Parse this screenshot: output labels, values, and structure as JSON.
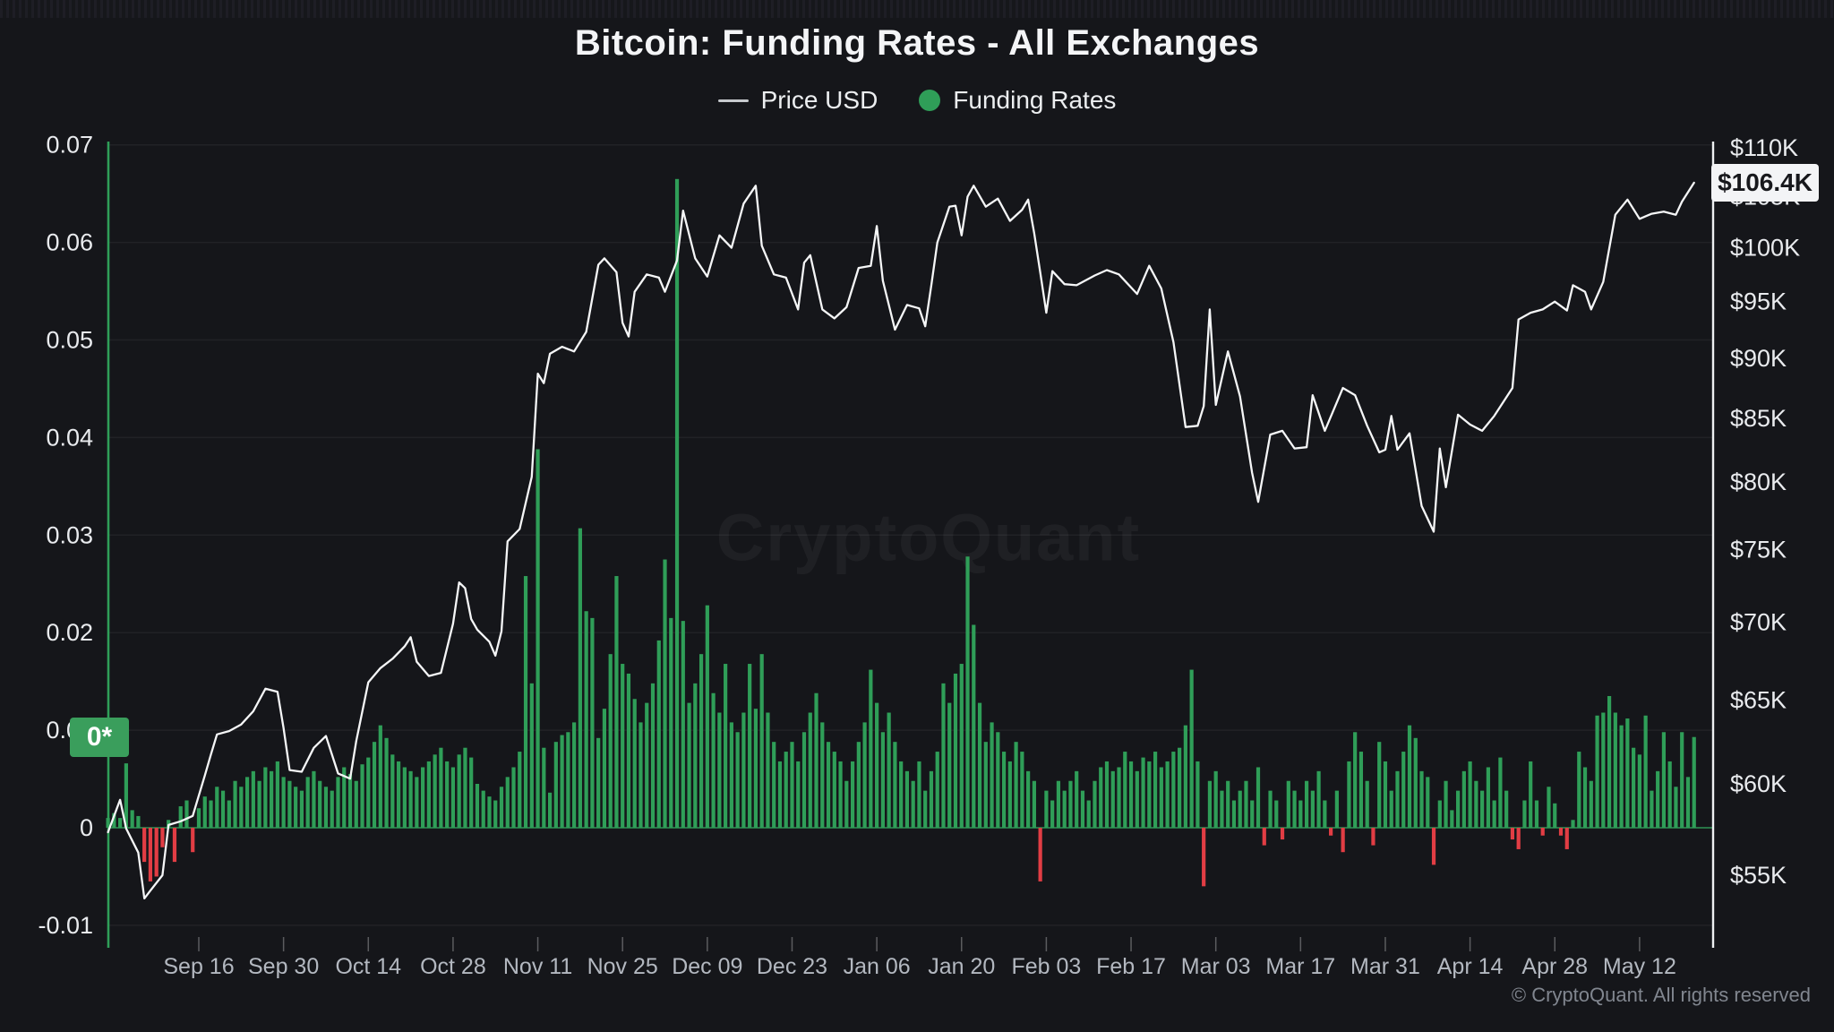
{
  "header": {
    "title": "Bitcoin: Funding Rates - All Exchanges"
  },
  "legend": {
    "items": [
      {
        "label": "Price USD",
        "marker": "line",
        "color": "#c6c9cd"
      },
      {
        "label": "Funding Rates",
        "marker": "dot",
        "color": "#2f9e58"
      }
    ]
  },
  "watermark": {
    "text": "CryptoQuant"
  },
  "footer": {
    "text": "© CryptoQuant. All rights reserved"
  },
  "colors": {
    "background": "#15161a",
    "grid": "rgba(255,255,255,0.055)",
    "funding_positive": "#2f9e58",
    "funding_negative": "#e23d44",
    "price_line": "#f5f6f7",
    "left_axis_line": "#2f9e58",
    "right_axis_line": "#eef0f2",
    "date_label": "#b3b8c0",
    "value_label": "#e9ebee",
    "tick_mark": "rgba(255,255,255,0.3)",
    "badge_funding_bg": "#3a9e5c",
    "badge_price_bg": "#f3f4f6"
  },
  "axes": {
    "left": {
      "title": "Funding Rates",
      "tick_labels": [
        "0.07",
        "0.06",
        "0.05",
        "0.04",
        "0.03",
        "0.02",
        "0.01",
        "0",
        "-0.01"
      ],
      "tick_values": [
        0.07,
        0.06,
        0.05,
        0.04,
        0.03,
        0.02,
        0.01,
        0,
        -0.01
      ],
      "badge": {
        "label": "0*",
        "value": 0.0093
      }
    },
    "right": {
      "title": "Price USD",
      "scale": "log",
      "tick_labels": [
        "$110K",
        "$105K",
        "$100K",
        "$95K",
        "$90K",
        "$85K",
        "$80K",
        "$75K",
        "$70K",
        "$65K",
        "$60K",
        "$55K"
      ],
      "tick_values": [
        110,
        105,
        100,
        95,
        90,
        85,
        80,
        75,
        70,
        65,
        60,
        55
      ],
      "badge": {
        "label": "$106.4K",
        "value": 106.4
      }
    },
    "x": {
      "start_date": "Sep 1, 2024",
      "tick_labels": [
        "Sep 16",
        "Sep 30",
        "Oct 14",
        "Oct 28",
        "Nov 11",
        "Nov 25",
        "Dec 09",
        "Dec 23",
        "Jan 06",
        "Jan 20",
        "Feb 03",
        "Feb 17",
        "Mar 03",
        "Mar 17",
        "Mar 31",
        "Apr 14",
        "Apr 28",
        "May 12"
      ],
      "tick_days": [
        15,
        29,
        43,
        57,
        71,
        85,
        99,
        113,
        127,
        141,
        155,
        169,
        183,
        197,
        211,
        225,
        239,
        253
      ]
    }
  },
  "chart_data": {
    "type": "composite",
    "title": "Bitcoin: Funding Rates - All Exchanges",
    "x_unit": "day index from Sep 1, 2024 (daily data, ends ~May 21, 2025)",
    "grid": "horizontal",
    "legend_position": "top-center",
    "y_left_range": [
      -0.013,
      0.07
    ],
    "y_right_range_thousands_usd": [
      52,
      112
    ],
    "series": [
      {
        "name": "Price USD",
        "type": "line",
        "axis": "right",
        "unit": "thousand USD",
        "points": [
          [
            0,
            57.3
          ],
          [
            2,
            59.1
          ],
          [
            3,
            57.5
          ],
          [
            5,
            56.2
          ],
          [
            6,
            53.8
          ],
          [
            7,
            54.2
          ],
          [
            9,
            55.0
          ],
          [
            10,
            57.7
          ],
          [
            12,
            57.9
          ],
          [
            14,
            58.2
          ],
          [
            16,
            60.5
          ],
          [
            17,
            61.7
          ],
          [
            18,
            62.9
          ],
          [
            20,
            63.1
          ],
          [
            22,
            63.5
          ],
          [
            24,
            64.3
          ],
          [
            26,
            65.7
          ],
          [
            28,
            65.5
          ],
          [
            29,
            63.3
          ],
          [
            30,
            60.8
          ],
          [
            32,
            60.7
          ],
          [
            34,
            62.1
          ],
          [
            36,
            62.8
          ],
          [
            38,
            60.6
          ],
          [
            40,
            60.3
          ],
          [
            41,
            62.5
          ],
          [
            43,
            66.1
          ],
          [
            45,
            67.0
          ],
          [
            47,
            67.6
          ],
          [
            49,
            68.4
          ],
          [
            50,
            69.0
          ],
          [
            51,
            67.4
          ],
          [
            53,
            66.5
          ],
          [
            55,
            66.7
          ],
          [
            57,
            69.9
          ],
          [
            58,
            72.7
          ],
          [
            59,
            72.3
          ],
          [
            60,
            70.2
          ],
          [
            61,
            69.5
          ],
          [
            63,
            68.7
          ],
          [
            64,
            67.8
          ],
          [
            65,
            69.4
          ],
          [
            66,
            75.6
          ],
          [
            68,
            76.5
          ],
          [
            70,
            80.4
          ],
          [
            71,
            88.7
          ],
          [
            72,
            87.9
          ],
          [
            73,
            90.4
          ],
          [
            75,
            91.0
          ],
          [
            77,
            90.6
          ],
          [
            79,
            92.3
          ],
          [
            81,
            98.4
          ],
          [
            82,
            99.0
          ],
          [
            84,
            97.7
          ],
          [
            85,
            93.1
          ],
          [
            86,
            91.9
          ],
          [
            87,
            95.9
          ],
          [
            89,
            97.5
          ],
          [
            91,
            97.2
          ],
          [
            92,
            95.9
          ],
          [
            94,
            98.8
          ],
          [
            95,
            103.6
          ],
          [
            97,
            99.0
          ],
          [
            99,
            97.3
          ],
          [
            101,
            101.2
          ],
          [
            103,
            100.0
          ],
          [
            105,
            104.3
          ],
          [
            107,
            106.1
          ],
          [
            108,
            100.2
          ],
          [
            110,
            97.5
          ],
          [
            112,
            97.2
          ],
          [
            114,
            94.3
          ],
          [
            115,
            98.6
          ],
          [
            116,
            99.3
          ],
          [
            118,
            94.3
          ],
          [
            120,
            93.5
          ],
          [
            122,
            94.5
          ],
          [
            124,
            98.1
          ],
          [
            126,
            98.3
          ],
          [
            127,
            102.1
          ],
          [
            128,
            96.9
          ],
          [
            130,
            92.5
          ],
          [
            132,
            94.7
          ],
          [
            134,
            94.4
          ],
          [
            135,
            92.8
          ],
          [
            136,
            96.5
          ],
          [
            137,
            100.5
          ],
          [
            139,
            104.0
          ],
          [
            140,
            104.1
          ],
          [
            141,
            101.2
          ],
          [
            142,
            105.0
          ],
          [
            143,
            106.1
          ],
          [
            145,
            104.0
          ],
          [
            147,
            104.8
          ],
          [
            149,
            102.6
          ],
          [
            151,
            103.7
          ],
          [
            152,
            104.7
          ],
          [
            153,
            101.4
          ],
          [
            154,
            97.7
          ],
          [
            155,
            94.0
          ],
          [
            156,
            97.8
          ],
          [
            158,
            96.6
          ],
          [
            160,
            96.5
          ],
          [
            163,
            97.4
          ],
          [
            165,
            97.9
          ],
          [
            167,
            97.5
          ],
          [
            170,
            95.7
          ],
          [
            172,
            98.3
          ],
          [
            174,
            96.2
          ],
          [
            176,
            91.4
          ],
          [
            178,
            84.3
          ],
          [
            180,
            84.4
          ],
          [
            181,
            86.0
          ],
          [
            182,
            94.3
          ],
          [
            183,
            86.1
          ],
          [
            185,
            90.6
          ],
          [
            187,
            86.8
          ],
          [
            189,
            80.7
          ],
          [
            190,
            78.5
          ],
          [
            192,
            83.7
          ],
          [
            194,
            84.0
          ],
          [
            196,
            82.6
          ],
          [
            198,
            82.7
          ],
          [
            199,
            86.9
          ],
          [
            201,
            84.0
          ],
          [
            204,
            87.5
          ],
          [
            206,
            86.9
          ],
          [
            208,
            84.4
          ],
          [
            210,
            82.3
          ],
          [
            211,
            82.5
          ],
          [
            212,
            85.2
          ],
          [
            213,
            82.5
          ],
          [
            215,
            83.8
          ],
          [
            217,
            78.2
          ],
          [
            219,
            76.3
          ],
          [
            220,
            82.6
          ],
          [
            221,
            79.6
          ],
          [
            223,
            85.3
          ],
          [
            225,
            84.5
          ],
          [
            227,
            84.0
          ],
          [
            229,
            85.2
          ],
          [
            232,
            87.5
          ],
          [
            233,
            93.4
          ],
          [
            235,
            94.0
          ],
          [
            237,
            94.3
          ],
          [
            239,
            95.0
          ],
          [
            241,
            94.2
          ],
          [
            242,
            96.5
          ],
          [
            244,
            95.9
          ],
          [
            245,
            94.3
          ],
          [
            247,
            96.8
          ],
          [
            249,
            103.2
          ],
          [
            251,
            104.7
          ],
          [
            253,
            102.8
          ],
          [
            255,
            103.3
          ],
          [
            257,
            103.5
          ],
          [
            259,
            103.2
          ],
          [
            260,
            104.5
          ],
          [
            262,
            106.4
          ]
        ]
      },
      {
        "name": "Funding Rates",
        "type": "bar",
        "axis": "left",
        "positive_color": "#2f9e58",
        "negative_color": "#e23d44",
        "values": [
          0.001,
          0.0015,
          0.001,
          0.0066,
          0.0018,
          0.0012,
          -0.0035,
          -0.0055,
          -0.005,
          -0.002,
          0.0008,
          -0.0035,
          0.0022,
          0.0028,
          -0.0025,
          0.002,
          0.0032,
          0.0028,
          0.0042,
          0.0038,
          0.0028,
          0.0048,
          0.0042,
          0.0052,
          0.0058,
          0.0048,
          0.0062,
          0.0058,
          0.0068,
          0.0052,
          0.0048,
          0.0042,
          0.0038,
          0.0052,
          0.0058,
          0.0048,
          0.0042,
          0.0038,
          0.0052,
          0.0062,
          0.0055,
          0.0048,
          0.0065,
          0.0072,
          0.0088,
          0.0105,
          0.0092,
          0.0075,
          0.0068,
          0.0062,
          0.0058,
          0.0052,
          0.0062,
          0.0068,
          0.0075,
          0.0082,
          0.0068,
          0.0062,
          0.0075,
          0.0082,
          0.0072,
          0.0045,
          0.0038,
          0.0032,
          0.0028,
          0.0042,
          0.0052,
          0.0062,
          0.0078,
          0.0258,
          0.0148,
          0.0388,
          0.0082,
          0.0036,
          0.0088,
          0.0095,
          0.0098,
          0.0108,
          0.0307,
          0.0222,
          0.0215,
          0.0092,
          0.0122,
          0.0178,
          0.0258,
          0.0168,
          0.0158,
          0.0132,
          0.0108,
          0.0128,
          0.0148,
          0.0192,
          0.0275,
          0.0215,
          0.0665,
          0.0212,
          0.0128,
          0.0148,
          0.0178,
          0.0228,
          0.0138,
          0.0118,
          0.0168,
          0.0108,
          0.0098,
          0.0118,
          0.0168,
          0.0122,
          0.0178,
          0.0118,
          0.0088,
          0.0068,
          0.0078,
          0.0088,
          0.0068,
          0.0098,
          0.0118,
          0.0138,
          0.0108,
          0.0088,
          0.0078,
          0.0068,
          0.0048,
          0.0068,
          0.0088,
          0.0108,
          0.0162,
          0.0128,
          0.0098,
          0.0118,
          0.0088,
          0.0068,
          0.0058,
          0.0048,
          0.0068,
          0.0038,
          0.0058,
          0.0078,
          0.0148,
          0.0128,
          0.0158,
          0.0168,
          0.0278,
          0.0208,
          0.0128,
          0.0088,
          0.0108,
          0.0098,
          0.0078,
          0.0068,
          0.0088,
          0.0078,
          0.0058,
          0.0048,
          -0.0055,
          0.0038,
          0.0028,
          0.0048,
          0.0038,
          0.0048,
          0.0058,
          0.0038,
          0.0028,
          0.0048,
          0.0062,
          0.0068,
          0.0058,
          0.0062,
          0.0078,
          0.0068,
          0.0058,
          0.0072,
          0.0068,
          0.0078,
          0.0062,
          0.0068,
          0.0078,
          0.0082,
          0.0105,
          0.0162,
          0.0068,
          -0.006,
          0.0048,
          0.0058,
          0.0038,
          0.0048,
          0.0028,
          0.0038,
          0.0048,
          0.0028,
          0.0062,
          -0.0018,
          0.0038,
          0.0028,
          -0.0012,
          0.0048,
          0.0038,
          0.0028,
          0.0048,
          0.0038,
          0.0058,
          0.0028,
          -0.0008,
          0.0038,
          -0.0025,
          0.0068,
          0.0098,
          0.0078,
          0.0048,
          -0.0018,
          0.0088,
          0.0068,
          0.0038,
          0.0058,
          0.0078,
          0.0105,
          0.0092,
          0.0058,
          0.0052,
          -0.0038,
          0.0028,
          0.0048,
          0.0018,
          0.0038,
          0.0058,
          0.0068,
          0.0048,
          0.0038,
          0.0062,
          0.0028,
          0.0072,
          0.0038,
          -0.0012,
          -0.0022,
          0.0028,
          0.0068,
          0.0028,
          -0.0008,
          0.0042,
          0.0025,
          -0.0008,
          -0.0022,
          0.0008,
          0.0078,
          0.0062,
          0.0048,
          0.0115,
          0.0118,
          0.0135,
          0.0118,
          0.0105,
          0.0112,
          0.0082,
          0.0075,
          0.0115,
          0.0038,
          0.0058,
          0.0098,
          0.0068,
          0.0042,
          0.0098,
          0.0052,
          0.0093
        ]
      }
    ]
  }
}
